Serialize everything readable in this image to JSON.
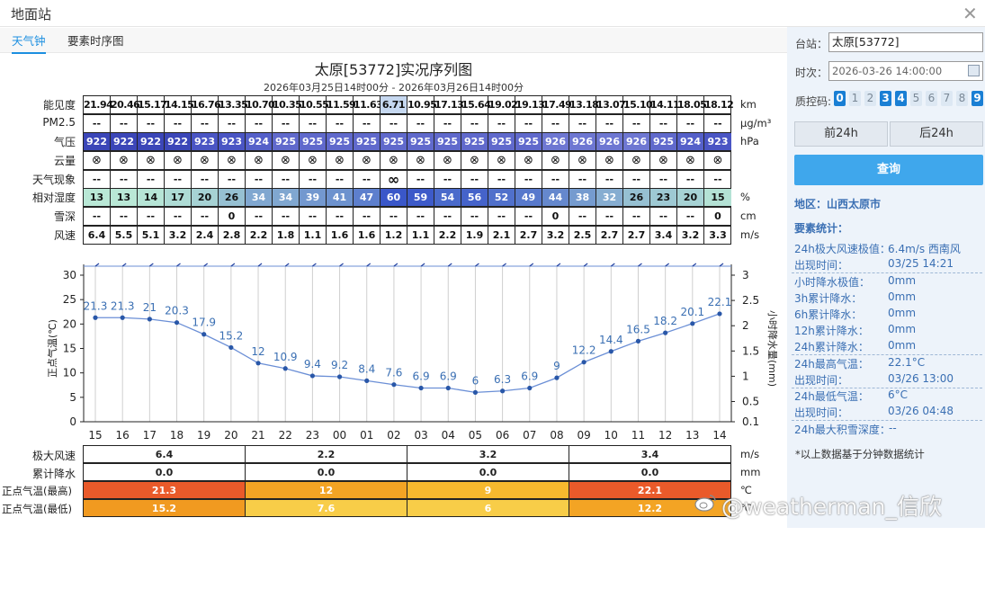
{
  "window": {
    "title": "地面站"
  },
  "tabs": [
    {
      "label": "天气钟",
      "active": true
    },
    {
      "label": "要素时序图",
      "active": false
    }
  ],
  "chart": {
    "title": "太原[53772]实况序列图",
    "subtitle": "2026年03月25日14时00分 - 2026年03月26日14时00分",
    "table_rows": [
      {
        "label": "能见度",
        "unit": "km",
        "values": [
          "21.94",
          "20.46",
          "15.17",
          "14.15",
          "16.76",
          "13.35",
          "10.70",
          "10.35",
          "10.55",
          "11.59",
          "11.63",
          "6.71",
          "10.95",
          "17.13",
          "15.64",
          "19.02",
          "19.13",
          "17.49",
          "13.18",
          "13.07",
          "15.10",
          "14.11",
          "18.05",
          "18.12"
        ]
      },
      {
        "label": "PM2.5",
        "unit": "μg/m³",
        "values": [
          "--",
          "--",
          "--",
          "--",
          "--",
          "--",
          "--",
          "--",
          "--",
          "--",
          "--",
          "--",
          "--",
          "--",
          "--",
          "--",
          "--",
          "--",
          "--",
          "--",
          "--",
          "--",
          "--",
          "--"
        ]
      },
      {
        "label": "气压",
        "unit": "hPa",
        "values": [
          "922",
          "922",
          "922",
          "922",
          "923",
          "923",
          "924",
          "925",
          "925",
          "925",
          "925",
          "925",
          "925",
          "925",
          "925",
          "925",
          "925",
          "926",
          "926",
          "926",
          "926",
          "925",
          "924",
          "923"
        ]
      },
      {
        "label": "云量",
        "unit": "",
        "values": [
          "⊗",
          "⊗",
          "⊗",
          "⊗",
          "⊗",
          "⊗",
          "⊗",
          "⊗",
          "⊗",
          "⊗",
          "⊗",
          "⊗",
          "⊗",
          "⊗",
          "⊗",
          "⊗",
          "⊗",
          "⊗",
          "⊗",
          "⊗",
          "⊗",
          "⊗",
          "⊗",
          "⊗"
        ]
      },
      {
        "label": "天气现象",
        "unit": "",
        "values": [
          "--",
          "--",
          "--",
          "--",
          "--",
          "--",
          "--",
          "--",
          "--",
          "--",
          "--",
          "∞",
          "--",
          "--",
          "--",
          "--",
          "--",
          "--",
          "--",
          "--",
          "--",
          "--",
          "--",
          "--"
        ]
      },
      {
        "label": "相对湿度",
        "unit": "%",
        "values": [
          "13",
          "13",
          "14",
          "17",
          "20",
          "26",
          "34",
          "34",
          "39",
          "41",
          "47",
          "60",
          "59",
          "54",
          "56",
          "52",
          "49",
          "44",
          "38",
          "32",
          "26",
          "23",
          "20",
          "15"
        ]
      },
      {
        "label": "雪深",
        "unit": "cm",
        "values": [
          "--",
          "--",
          "--",
          "--",
          "--",
          "0",
          "--",
          "--",
          "--",
          "--",
          "--",
          "--",
          "--",
          "--",
          "--",
          "--",
          "--",
          "0",
          "--",
          "--",
          "--",
          "--",
          "--",
          "0"
        ]
      },
      {
        "label": "风速",
        "unit": "m/s",
        "values": [
          "6.4",
          "5.5",
          "5.1",
          "3.2",
          "2.4",
          "2.8",
          "2.2",
          "1.8",
          "1.1",
          "1.6",
          "1.6",
          "1.2",
          "1.1",
          "2.2",
          "1.9",
          "2.1",
          "2.7",
          "3.2",
          "2.5",
          "2.7",
          "2.7",
          "3.4",
          "3.2",
          "3.3"
        ]
      }
    ],
    "colors": {
      "pressure": {
        "922": "#3b46b8",
        "923": "#4a55c4",
        "924": "#5560c9",
        "925": "#6069cc",
        "926": "#6e77d2"
      },
      "humidity_low": "#b9e8d6",
      "humidity_high": "#3a57c9",
      "visibility_low": "#c6d8f0",
      "line": "#6b8fd6",
      "point": "#2957a8",
      "label": "#3a6fb3"
    },
    "y_left_label": "正点气温(℃)",
    "y_right_label": "小时降水量(mm)",
    "summary": {
      "rows": [
        {
          "label": "极大风速",
          "unit": "m/s",
          "values": [
            "6.4",
            "2.2",
            "3.2",
            "3.4"
          ],
          "colors": [
            "#ffffff",
            "#ffffff",
            "#ffffff",
            "#ffffff"
          ]
        },
        {
          "label": "累计降水",
          "unit": "mm",
          "values": [
            "0.0",
            "0.0",
            "0.0",
            "0.0"
          ],
          "colors": [
            "#ffffff",
            "#ffffff",
            "#ffffff",
            "#ffffff"
          ]
        },
        {
          "label": "正点气温(最高)",
          "unit": "℃",
          "values": [
            "21.3",
            "12",
            "9",
            "22.1"
          ],
          "colors": [
            "#ea5a2a",
            "#f3a424",
            "#f7b92e",
            "#ea5a2a"
          ]
        },
        {
          "label": "正点气温(最低)",
          "unit": "℃",
          "values": [
            "15.2",
            "7.6",
            "6",
            "12.2"
          ],
          "colors": [
            "#f19a20",
            "#f8cd48",
            "#f8cd48",
            "#f3a424"
          ]
        }
      ]
    }
  },
  "chart_data": {
    "type": "line",
    "x": [
      "15",
      "16",
      "17",
      "18",
      "19",
      "20",
      "21",
      "22",
      "23",
      "00",
      "01",
      "02",
      "03",
      "04",
      "05",
      "06",
      "07",
      "08",
      "09",
      "10",
      "11",
      "12",
      "13",
      "14"
    ],
    "series": [
      {
        "values": [
          21.3,
          21.3,
          21,
          20.3,
          17.9,
          15.2,
          12,
          10.9,
          9.4,
          9.2,
          8.4,
          7.6,
          6.9,
          6.9,
          6,
          6.3,
          6.9,
          9,
          12.2,
          14.4,
          16.5,
          18.2,
          20.1,
          22.1
        ]
      }
    ],
    "ylim_left": [
      0,
      30
    ],
    "yticks_left": [
      "0",
      "5",
      "10",
      "15",
      "20",
      "25",
      "30"
    ],
    "ylim_right": [
      0.1,
      3
    ],
    "yticks_right": [
      "0.1",
      "0.5",
      "1",
      "1.5",
      "2",
      "2.5",
      "3"
    ],
    "ylabel": "正点气温(℃)",
    "ylabel_right": "小时降水量(mm)",
    "grid": "vertical"
  },
  "sidebar": {
    "station_label": "台站：",
    "station_value": "太原[53772]",
    "time_label": "时次：",
    "time_value": "2026-03-26 14:00:00",
    "qc_label": "质控码:",
    "qc_codes": [
      {
        "v": "0",
        "on": true
      },
      {
        "v": "1",
        "on": false
      },
      {
        "v": "2",
        "on": false
      },
      {
        "v": "3",
        "on": true
      },
      {
        "v": "4",
        "on": true
      },
      {
        "v": "5",
        "on": false
      },
      {
        "v": "6",
        "on": false
      },
      {
        "v": "7",
        "on": false
      },
      {
        "v": "8",
        "on": false
      },
      {
        "v": "9",
        "on": true
      }
    ],
    "prev_button": "前24h",
    "next_button": "后24h",
    "query_button": "查询",
    "region": "地区：山西太原市",
    "stats_title": "要素统计：",
    "stats": [
      {
        "label": "24h极大风速极值：",
        "value": "6.4m/s 西南风"
      },
      {
        "label": "出现时间：",
        "value": "03/25 14:21"
      },
      {
        "label": "小时降水极值：",
        "value": "0mm"
      },
      {
        "label": "3h累计降水：",
        "value": "0mm"
      },
      {
        "label": "6h累计降水：",
        "value": "0mm"
      },
      {
        "label": "12h累计降水：",
        "value": "0mm"
      },
      {
        "label": "24h累计降水：",
        "value": "0mm"
      },
      {
        "label": "24h最高气温：",
        "value": "22.1°C"
      },
      {
        "label": "出现时间：",
        "value": "03/26 13:00"
      },
      {
        "label": "24h最低气温：",
        "value": "6°C"
      },
      {
        "label": "出现时间：",
        "value": "03/26 04:48"
      },
      {
        "label": "24h最大积雪深度：",
        "value": "--"
      }
    ],
    "note": "*以上数据基于分钟数据统计"
  },
  "watermark": "@weatherman_信欣"
}
